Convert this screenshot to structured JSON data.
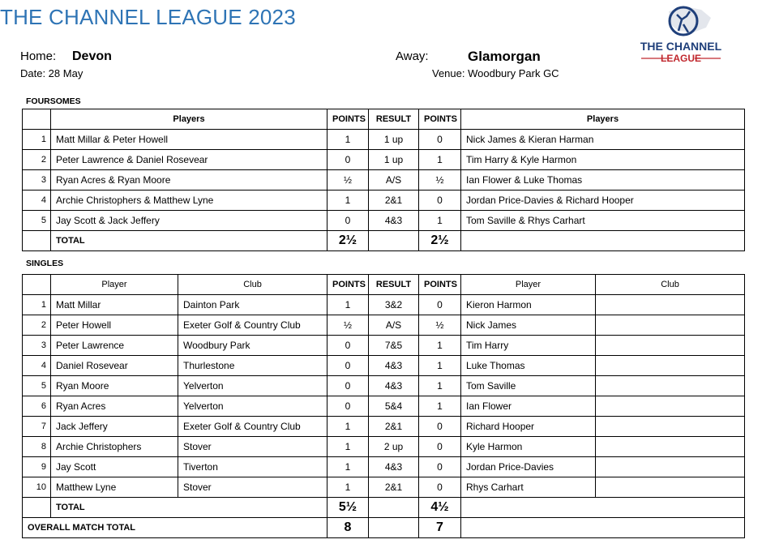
{
  "header": {
    "title": "THE CHANNEL LEAGUE 2023",
    "home_label": "Home:",
    "home": "Devon",
    "away_label": "Away:",
    "away": "Glamorgan",
    "date": "Date: 28 May",
    "venue": "Venue: Woodbury Park GC",
    "logo": [
      "THE CHANNEL",
      "LEAGUE"
    ]
  },
  "foursomes": {
    "title": "FOURSOMES",
    "columns": [
      "Players",
      "POINTS",
      "RESULT",
      "POINTS",
      "Players"
    ],
    "rows": [
      [
        "1",
        "Matt Millar & Peter Howell",
        "1",
        "1 up",
        "0",
        "Nick James & Kieran Harman"
      ],
      [
        "2",
        "Peter Lawrence & Daniel Rosevear",
        "0",
        "1 up",
        "1",
        "Tim Harry & Kyle Harmon"
      ],
      [
        "3",
        "Ryan Acres & Ryan Moore",
        "½",
        "A/S",
        "½",
        "Ian Flower & Luke Thomas"
      ],
      [
        "4",
        "Archie Christophers & Matthew Lyne",
        "1",
        "2&1",
        "0",
        "Jordan Price-Davies & Richard Hooper"
      ],
      [
        "5",
        "Jay Scott & Jack Jeffery",
        "0",
        "4&3",
        "1",
        "Tom Saville & Rhys Carhart"
      ]
    ],
    "total": {
      "label": "TOTAL",
      "home": "2½",
      "away": "2½"
    }
  },
  "singles": {
    "title": "SINGLES",
    "columns": [
      "Player",
      "Club",
      "POINTS",
      "RESULT",
      "POINTS",
      "Player",
      "Club"
    ],
    "rows": [
      [
        "1",
        "Matt Millar",
        "Dainton Park",
        "1",
        "3&2",
        "0",
        "Kieron Harmon"
      ],
      [
        "2",
        "Peter Howell",
        "Exeter Golf & Country Club",
        "½",
        "A/S",
        "½",
        "Nick James"
      ],
      [
        "3",
        "Peter Lawrence",
        "Woodbury Park",
        "0",
        "7&5",
        "1",
        "Tim Harry"
      ],
      [
        "4",
        "Daniel Rosevear",
        "Thurlestone",
        "0",
        "4&3",
        "1",
        "Luke Thomas"
      ],
      [
        "5",
        "Ryan Moore",
        "Yelverton",
        "0",
        "4&3",
        "1",
        "Tom Saville"
      ],
      [
        "6",
        "Ryan Acres",
        "Yelverton",
        "0",
        "5&4",
        "1",
        "Ian Flower"
      ],
      [
        "7",
        "Jack Jeffery",
        "Exeter Golf & Country Club",
        "1",
        "2&1",
        "0",
        "Richard Hooper"
      ],
      [
        "8",
        "Archie Christophers",
        "Stover",
        "1",
        "2 up",
        "0",
        "Kyle Harmon"
      ],
      [
        "9",
        "Jay Scott",
        "Tiverton",
        "1",
        "4&3",
        "0",
        "Jordan Price-Davies"
      ],
      [
        "10",
        "Matthew Lyne",
        "Stover",
        "1",
        "2&1",
        "0",
        "Rhys Carhart"
      ]
    ],
    "total": {
      "label": "TOTAL",
      "home": "5½",
      "away": "4½"
    }
  },
  "overall": {
    "label": "OVERALL MATCH TOTAL",
    "home": "8",
    "away": "7"
  }
}
